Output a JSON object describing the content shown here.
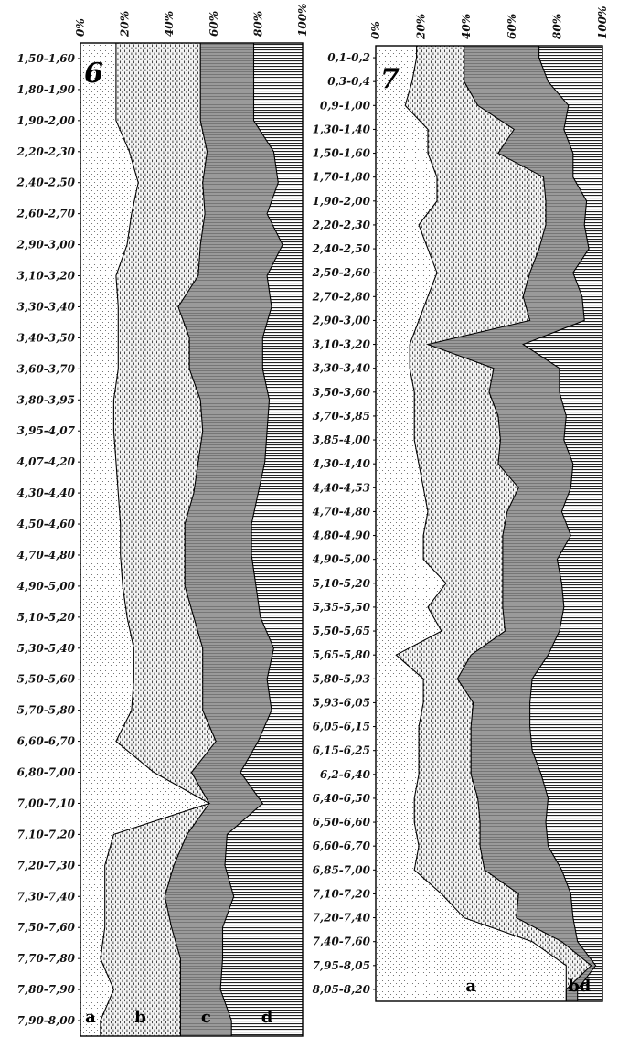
{
  "chart_data": [
    {
      "type": "area",
      "title": "6",
      "x_ticks": [
        "0%",
        "20%",
        "40%",
        "60%",
        "80%",
        "100%"
      ],
      "xlim": [
        0,
        100
      ],
      "categories": [
        "1,50-1,60",
        "1,80-1,90",
        "1,90-2,00",
        "2,20-2,30",
        "2,40-2,50",
        "2,60-2,70",
        "2,90-3,00",
        "3,10-3,20",
        "3,30-3,40",
        "3,40-3,50",
        "3,60-3,70",
        "3,80-3,95",
        "3,95-4,07",
        "4,07-4,20",
        "4,30-4,40",
        "4,50-4,60",
        "4,70-4,80",
        "4,90-5,00",
        "5,10-5,20",
        "5,30-5,40",
        "5,50-5,60",
        "5,70-5,80",
        "6,60-6,70",
        "6,80-7,00",
        "7,00-7,10",
        "7,10-7,20",
        "7,20-7,30",
        "7,30-7,40",
        "7,50-7,60",
        "7,70-7,80",
        "7,80-7,90",
        "7,90-8,00"
      ],
      "series": [
        {
          "name": "a",
          "values": [
            16,
            16,
            16,
            22,
            26,
            23,
            21,
            16,
            17,
            17,
            17,
            15,
            15,
            16,
            17,
            18,
            18,
            19,
            21,
            24,
            24,
            23,
            16,
            33,
            58,
            15,
            11,
            11,
            11,
            9,
            15,
            9
          ]
        },
        {
          "name": "b",
          "values": [
            38,
            38,
            38,
            35,
            29,
            33,
            33,
            37,
            27,
            32,
            32,
            39,
            40,
            37,
            34,
            29,
            29,
            28,
            30,
            31,
            31,
            32,
            45,
            17,
            0,
            33,
            31,
            27,
            30,
            36,
            30,
            36
          ]
        },
        {
          "name": "c",
          "values": [
            24,
            24,
            24,
            30,
            34,
            28,
            37,
            31,
            42,
            33,
            33,
            31,
            29,
            30,
            29,
            30,
            30,
            32,
            30,
            32,
            29,
            31,
            19,
            22,
            24,
            18,
            23,
            31,
            23,
            19,
            18,
            23
          ]
        },
        {
          "name": "d",
          "values": [
            22,
            22,
            22,
            13,
            11,
            16,
            9,
            16,
            14,
            18,
            18,
            15,
            16,
            17,
            20,
            23,
            23,
            21,
            19,
            13,
            16,
            14,
            20,
            28,
            18,
            34,
            35,
            31,
            36,
            36,
            37,
            32
          ]
        }
      ]
    },
    {
      "type": "area",
      "title": "7",
      "x_ticks": [
        "0%",
        "20%",
        "40%",
        "60%",
        "80%",
        "100%"
      ],
      "xlim": [
        0,
        100
      ],
      "categories": [
        "0,1-0,2",
        "0,3-0,4",
        "0,9-1,00",
        "1,30-1,40",
        "1,50-1,60",
        "1,70-1,80",
        "1,90-2,00",
        "2,20-2,30",
        "2,40-2,50",
        "2,50-2,60",
        "2,70-2,80",
        "2,90-3,00",
        "3,10-3,20",
        "3,30-3,40",
        "3,50-3,60",
        "3,70-3,85",
        "3,85-4,00",
        "4,30-4,40",
        "4,40-4,53",
        "4,70-4,80",
        "4,80-4,90",
        "4,90-5,00",
        "5,10-5,20",
        "5,35-5,50",
        "5,50-5,65",
        "5,65-5,80",
        "5,80-5,93",
        "5,93-6,05",
        "6,05-6,15",
        "6,15-6,25",
        "6,2-6,40",
        "6,40-6,50",
        "6,50-6,60",
        "6,60-6,70",
        "6,85-7,00",
        "7,10-7,20",
        "7,20-7,40",
        "7,40-7,60",
        "7,95-8,05",
        "8,05-8,20"
      ],
      "series": [
        {
          "name": "a",
          "values": [
            18,
            16,
            13,
            23,
            23,
            27,
            27,
            19,
            23,
            27,
            23,
            19,
            15,
            15,
            17,
            17,
            17,
            19,
            21,
            23,
            21,
            21,
            31,
            23,
            29,
            9,
            21,
            21,
            19,
            19,
            19,
            17,
            17,
            19,
            17,
            29,
            39,
            69,
            84,
            84
          ]
        },
        {
          "name": "b",
          "values": [
            21,
            23,
            32,
            38,
            31,
            47,
            48,
            56,
            49,
            41,
            42,
            49,
            8,
            37,
            33,
            37,
            38,
            35,
            42,
            35,
            35,
            35,
            25,
            33,
            28,
            33,
            15,
            22,
            23,
            23,
            23,
            28,
            29,
            27,
            31,
            34,
            23,
            13,
            11,
            0
          ]
        },
        {
          "name": "c",
          "values": [
            33,
            37,
            40,
            22,
            33,
            13,
            18,
            17,
            22,
            19,
            26,
            24,
            42,
            29,
            31,
            30,
            28,
            33,
            23,
            24,
            30,
            24,
            26,
            27,
            24,
            34,
            33,
            25,
            26,
            27,
            31,
            31,
            29,
            30,
            34,
            23,
            25,
            7,
            2,
            5
          ]
        },
        {
          "name": "d",
          "values": [
            28,
            24,
            15,
            17,
            13,
            13,
            7,
            8,
            6,
            13,
            9,
            8,
            35,
            19,
            19,
            16,
            17,
            13,
            14,
            18,
            14,
            20,
            18,
            17,
            19,
            24,
            31,
            32,
            32,
            31,
            27,
            24,
            25,
            24,
            18,
            14,
            13,
            11,
            3,
            11
          ]
        }
      ]
    }
  ]
}
